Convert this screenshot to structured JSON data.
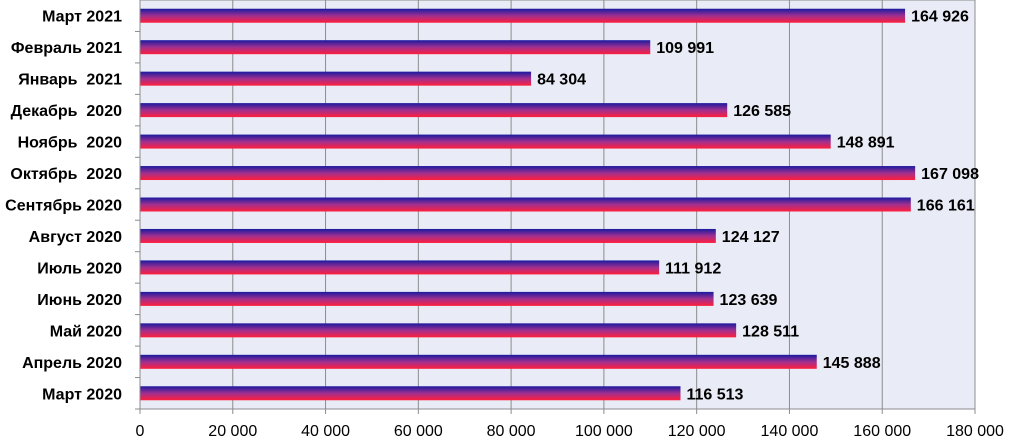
{
  "chart_data": {
    "type": "bar",
    "orientation": "horizontal",
    "title": "",
    "xlabel": "",
    "ylabel": "",
    "categories": [
      "Март 2020",
      "Апрель 2020",
      "Май 2020",
      "Июнь 2020",
      "Июль 2020",
      "Август 2020",
      "Сентябрь 2020",
      "Октябрь  2020",
      "Ноябрь  2020",
      "Декабрь  2020",
      "Январь  2021",
      "Февраль 2021",
      "Март 2021"
    ],
    "values": [
      116513,
      145888,
      128511,
      123639,
      111912,
      124127,
      166161,
      167098,
      148891,
      126585,
      84304,
      109991,
      164926
    ],
    "data_labels": [
      "116 513",
      "145 888",
      "128 511",
      "123 639",
      "111 912",
      "124 127",
      "166 161",
      "167 098",
      "148 891",
      "126 585",
      "84 304",
      "109 991",
      "164 926"
    ],
    "xlim": [
      0,
      180000
    ],
    "x_ticks": [
      0,
      20000,
      40000,
      60000,
      80000,
      100000,
      120000,
      140000,
      160000,
      180000
    ],
    "x_tick_labels": [
      "0",
      "20 000",
      "40 000",
      "60 000",
      "80 000",
      "100 000",
      "120 000",
      "140 000",
      "160 000",
      "180 000"
    ],
    "grid": "vertical",
    "legend": "none",
    "colors": {
      "plot_background": "#e9ecf6",
      "gridline": "#8c8c8c",
      "bar_top": "#1a1aa0",
      "bar_middle": "#a03090",
      "bar_bottom": "#ff1e3c"
    }
  }
}
